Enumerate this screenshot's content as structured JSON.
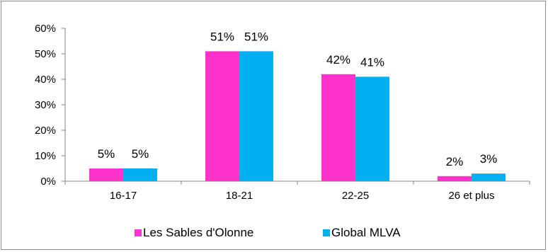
{
  "chart_data": {
    "type": "bar",
    "categories": [
      "16-17",
      "18-21",
      "22-25",
      "26 et plus"
    ],
    "series": [
      {
        "name": "Les Sables d'Olonne",
        "values": [
          5,
          51,
          42,
          2
        ],
        "labels": [
          "5%",
          "51%",
          "42%",
          "2%"
        ],
        "color": "#ff33cc"
      },
      {
        "name": "Global MLVA",
        "values": [
          5,
          51,
          41,
          3
        ],
        "labels": [
          "5%",
          "51%",
          "41%",
          "3%"
        ],
        "color": "#00b0f0"
      }
    ],
    "ylim": [
      0,
      60
    ],
    "yticks": [
      "0%",
      "10%",
      "20%",
      "30%",
      "40%",
      "50%",
      "60%"
    ],
    "grid": false,
    "legend": "bottom",
    "title": "",
    "xlabel": "",
    "ylabel": ""
  }
}
